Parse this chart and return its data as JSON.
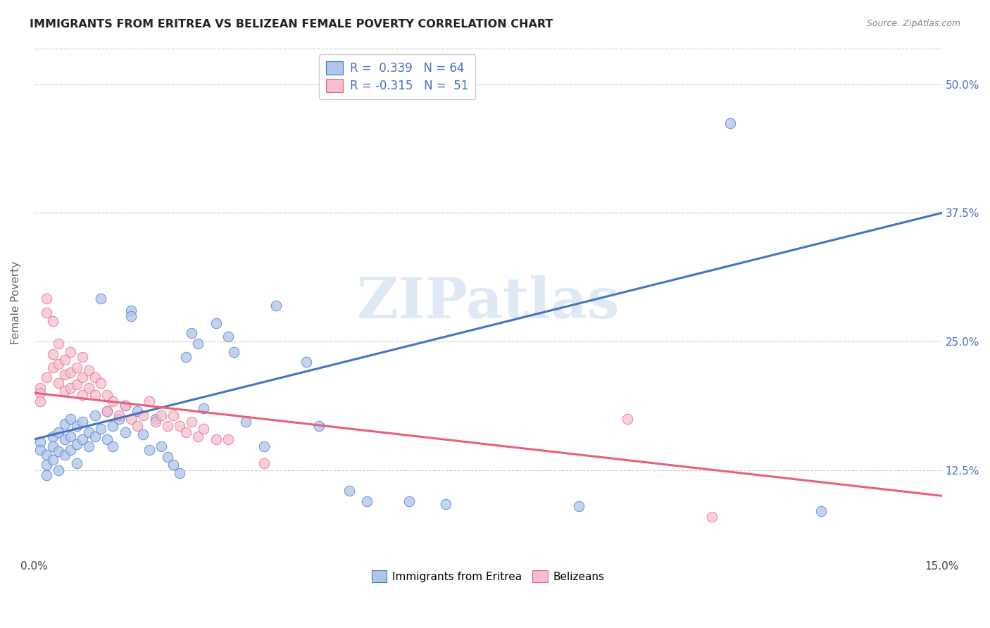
{
  "title": "IMMIGRANTS FROM ERITREA VS BELIZEAN FEMALE POVERTY CORRELATION CHART",
  "source": "Source: ZipAtlas.com",
  "ylabel": "Female Poverty",
  "ytick_labels": [
    "12.5%",
    "25.0%",
    "37.5%",
    "50.0%"
  ],
  "ytick_values": [
    0.125,
    0.25,
    0.375,
    0.5
  ],
  "xmin": 0.0,
  "xmax": 0.15,
  "ymin": 0.04,
  "ymax": 0.535,
  "watermark": "ZIPatlas",
  "eritrea_color": "#aec6e8",
  "belize_color": "#f5bfd0",
  "eritrea_line_color": "#4472c4",
  "belize_line_color": "#e8607a",
  "eritrea_scatter": [
    [
      0.001,
      0.152
    ],
    [
      0.001,
      0.145
    ],
    [
      0.002,
      0.14
    ],
    [
      0.002,
      0.13
    ],
    [
      0.002,
      0.12
    ],
    [
      0.003,
      0.158
    ],
    [
      0.003,
      0.148
    ],
    [
      0.003,
      0.135
    ],
    [
      0.004,
      0.162
    ],
    [
      0.004,
      0.143
    ],
    [
      0.004,
      0.125
    ],
    [
      0.005,
      0.17
    ],
    [
      0.005,
      0.155
    ],
    [
      0.005,
      0.14
    ],
    [
      0.006,
      0.175
    ],
    [
      0.006,
      0.158
    ],
    [
      0.006,
      0.145
    ],
    [
      0.007,
      0.168
    ],
    [
      0.007,
      0.15
    ],
    [
      0.007,
      0.132
    ],
    [
      0.008,
      0.172
    ],
    [
      0.008,
      0.155
    ],
    [
      0.009,
      0.148
    ],
    [
      0.009,
      0.162
    ],
    [
      0.01,
      0.178
    ],
    [
      0.01,
      0.158
    ],
    [
      0.011,
      0.292
    ],
    [
      0.011,
      0.165
    ],
    [
      0.012,
      0.182
    ],
    [
      0.012,
      0.155
    ],
    [
      0.013,
      0.168
    ],
    [
      0.013,
      0.148
    ],
    [
      0.014,
      0.175
    ],
    [
      0.015,
      0.188
    ],
    [
      0.015,
      0.162
    ],
    [
      0.016,
      0.28
    ],
    [
      0.016,
      0.275
    ],
    [
      0.017,
      0.182
    ],
    [
      0.018,
      0.16
    ],
    [
      0.019,
      0.145
    ],
    [
      0.02,
      0.175
    ],
    [
      0.021,
      0.148
    ],
    [
      0.022,
      0.138
    ],
    [
      0.023,
      0.13
    ],
    [
      0.024,
      0.122
    ],
    [
      0.025,
      0.235
    ],
    [
      0.026,
      0.258
    ],
    [
      0.027,
      0.248
    ],
    [
      0.028,
      0.185
    ],
    [
      0.03,
      0.268
    ],
    [
      0.032,
      0.255
    ],
    [
      0.033,
      0.24
    ],
    [
      0.035,
      0.172
    ],
    [
      0.038,
      0.148
    ],
    [
      0.04,
      0.285
    ],
    [
      0.045,
      0.23
    ],
    [
      0.047,
      0.168
    ],
    [
      0.052,
      0.105
    ],
    [
      0.055,
      0.095
    ],
    [
      0.062,
      0.095
    ],
    [
      0.068,
      0.092
    ],
    [
      0.09,
      0.09
    ],
    [
      0.115,
      0.462
    ],
    [
      0.13,
      0.085
    ]
  ],
  "belize_scatter": [
    [
      0.001,
      0.205
    ],
    [
      0.001,
      0.2
    ],
    [
      0.001,
      0.192
    ],
    [
      0.002,
      0.215
    ],
    [
      0.002,
      0.278
    ],
    [
      0.002,
      0.292
    ],
    [
      0.003,
      0.27
    ],
    [
      0.003,
      0.238
    ],
    [
      0.003,
      0.225
    ],
    [
      0.004,
      0.248
    ],
    [
      0.004,
      0.228
    ],
    [
      0.004,
      0.21
    ],
    [
      0.005,
      0.232
    ],
    [
      0.005,
      0.218
    ],
    [
      0.005,
      0.202
    ],
    [
      0.006,
      0.24
    ],
    [
      0.006,
      0.22
    ],
    [
      0.006,
      0.205
    ],
    [
      0.007,
      0.225
    ],
    [
      0.007,
      0.208
    ],
    [
      0.008,
      0.235
    ],
    [
      0.008,
      0.215
    ],
    [
      0.008,
      0.198
    ],
    [
      0.009,
      0.222
    ],
    [
      0.009,
      0.205
    ],
    [
      0.01,
      0.215
    ],
    [
      0.01,
      0.198
    ],
    [
      0.011,
      0.21
    ],
    [
      0.012,
      0.198
    ],
    [
      0.012,
      0.182
    ],
    [
      0.013,
      0.192
    ],
    [
      0.014,
      0.178
    ],
    [
      0.015,
      0.188
    ],
    [
      0.016,
      0.175
    ],
    [
      0.017,
      0.168
    ],
    [
      0.018,
      0.178
    ],
    [
      0.019,
      0.192
    ],
    [
      0.02,
      0.172
    ],
    [
      0.021,
      0.178
    ],
    [
      0.022,
      0.168
    ],
    [
      0.023,
      0.178
    ],
    [
      0.024,
      0.168
    ],
    [
      0.025,
      0.162
    ],
    [
      0.026,
      0.172
    ],
    [
      0.027,
      0.158
    ],
    [
      0.028,
      0.165
    ],
    [
      0.03,
      0.155
    ],
    [
      0.032,
      0.155
    ],
    [
      0.038,
      0.132
    ],
    [
      0.098,
      0.175
    ],
    [
      0.112,
      0.08
    ]
  ]
}
